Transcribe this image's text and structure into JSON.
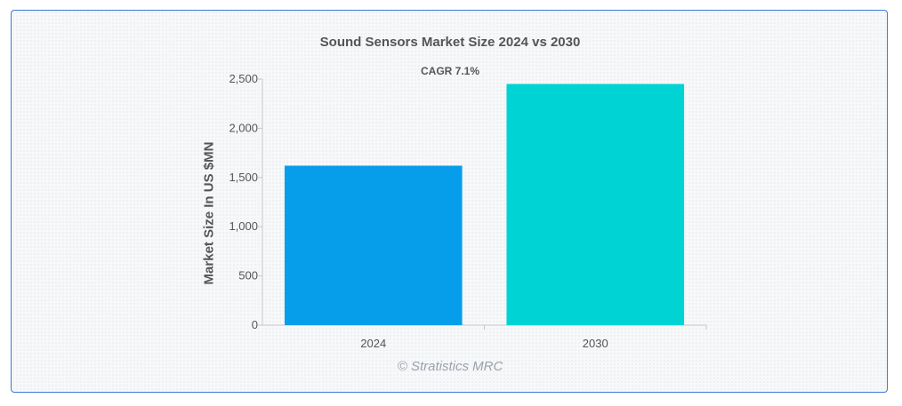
{
  "chart_data": {
    "type": "bar",
    "title": "Sound Sensors Market Size 2024 vs 2030",
    "subtitle": "CAGR 7.1%",
    "ylabel": "Market Size In US $MN",
    "xlabel": "",
    "categories": [
      "2024",
      "2030"
    ],
    "values": [
      1620,
      2450
    ],
    "colors": [
      "#069eeb",
      "#00d3d3"
    ],
    "ylim": [
      0,
      2500
    ],
    "yticks": [
      "0",
      "500",
      "1,000",
      "1,500",
      "2,000",
      "2,500"
    ],
    "ytick_values": [
      0,
      500,
      1000,
      1500,
      2000,
      2500
    ],
    "grid": false,
    "legend": "none"
  },
  "watermark": "© Stratistics MRC"
}
